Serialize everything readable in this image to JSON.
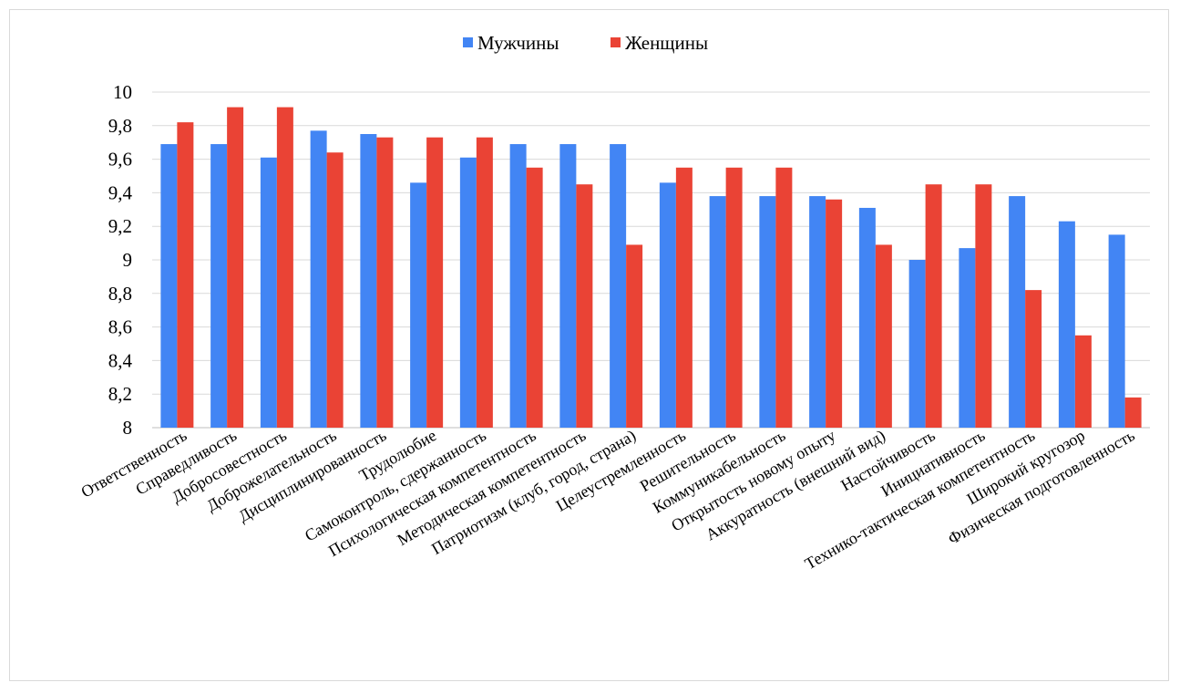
{
  "chart_data": {
    "type": "bar",
    "title": "",
    "xlabel": "",
    "ylabel": "",
    "ylim": [
      8,
      10
    ],
    "y_ticks": [
      8,
      8.2,
      8.4,
      8.6,
      8.8,
      9,
      9.2,
      9.4,
      9.6,
      9.8,
      10
    ],
    "y_tick_labels": [
      "8",
      "8,2",
      "8,4",
      "8,6",
      "8,8",
      "9",
      "9,2",
      "9,4",
      "9,6",
      "9,8",
      "10"
    ],
    "grid": true,
    "legend_position": "top-center",
    "categories": [
      "Ответственность",
      "Справедливость",
      "Добросовестность",
      "Доброжелательность",
      "Дисциплинированность",
      "Трудолюбие",
      "Самоконтроль, сдержанность",
      "Психологическая компетентность",
      "Методическая компетентность",
      "Патриотизм (клуб, город, страна)",
      "Целеустремленность",
      "Решительность",
      "Коммуникабельность",
      "Открытость новому опыту",
      "Аккуратность (внешний вид)",
      "Настойчивость",
      "Инициативность",
      "Технико-тактическая компетентность",
      "Широкий кругозор",
      "Физическая подготовленность"
    ],
    "series": [
      {
        "name": "Мужчины",
        "color": "#4285f4",
        "values": [
          9.69,
          9.69,
          9.61,
          9.77,
          9.75,
          9.46,
          9.61,
          9.69,
          9.69,
          9.69,
          9.46,
          9.38,
          9.38,
          9.38,
          9.31,
          9.0,
          9.07,
          9.38,
          9.23,
          9.15
        ]
      },
      {
        "name": "Женщины",
        "color": "#ea4335",
        "values": [
          9.82,
          9.91,
          9.91,
          9.64,
          9.73,
          9.73,
          9.73,
          9.55,
          9.45,
          9.09,
          9.55,
          9.55,
          9.55,
          9.36,
          9.09,
          9.45,
          9.45,
          8.82,
          8.55,
          8.18
        ]
      }
    ]
  }
}
